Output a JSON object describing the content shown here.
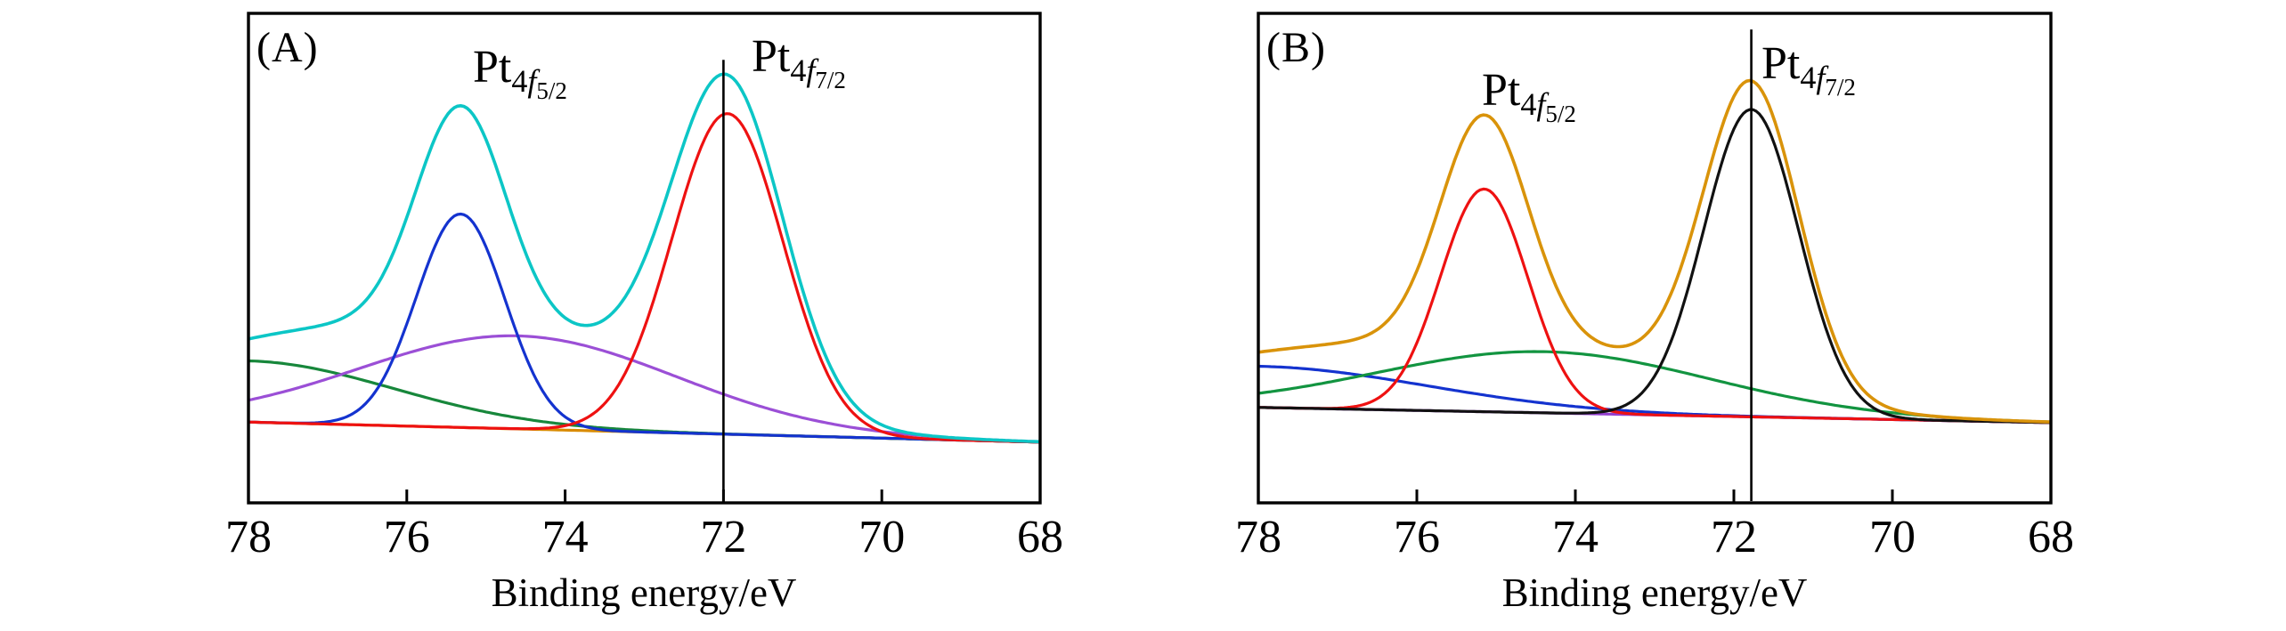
{
  "figure_caption": "XPS Pt 4f spectra, two panels",
  "chart_data": [
    {
      "type": "line",
      "panel": "A",
      "title": "(A)",
      "xlabel": "Binding energy/eV",
      "x_range": [
        78,
        68
      ],
      "x_axis_reversed": true,
      "x_ticks": [
        78,
        76,
        74,
        72,
        70,
        68
      ],
      "y_axis": "intensity, arbitrary units (no scale shown)",
      "grid": false,
      "legend": false,
      "vline": {
        "eV": 72.0,
        "top_frac": 0.905
      },
      "baseline": {
        "name": "baseline",
        "color": "#d98b00",
        "level_start": 0.165,
        "level_end": 0.124
      },
      "components": [
        {
          "name": "background-curve",
          "color": "#17873b",
          "shape": "edge_decay",
          "amplitude": 0.125,
          "decay_scale_eV": 2.6
        },
        {
          "name": "broad-oxide-component",
          "color": "#9b4fd6",
          "shape": "gaussian",
          "center_eV": 74.6,
          "sigma_eV": 2.0,
          "amplitude": 0.19
        },
        {
          "name": "pt4f5-2-component",
          "color": "#1433cf",
          "shape": "gaussian",
          "center_eV": 75.32,
          "sigma_eV": 0.56,
          "amplitude": 0.436
        },
        {
          "name": "pt4f7-2-component",
          "color": "#ee1111",
          "shape": "gaussian",
          "center_eV": 71.95,
          "sigma_eV": 0.7,
          "amplitude": 0.655
        }
      ],
      "envelope": {
        "name": "fit-envelope",
        "color": "#0cc6c6"
      },
      "annotations": [
        {
          "element": "Pt",
          "n": "4",
          "l": "f",
          "j": "5/2",
          "peak_eV": 75.3
        },
        {
          "element": "Pt",
          "n": "4",
          "l": "f",
          "j": "7/2",
          "peak_eV": 72.0
        }
      ]
    },
    {
      "type": "line",
      "panel": "B",
      "title": "(B)",
      "xlabel": "Binding energy/eV",
      "x_range": [
        78,
        68
      ],
      "x_axis_reversed": true,
      "x_ticks": [
        78,
        76,
        74,
        72,
        70,
        68
      ],
      "y_axis": "intensity, arbitrary units (no scale shown)",
      "grid": false,
      "legend": false,
      "vline": {
        "eV": 71.78,
        "top_frac": 0.967
      },
      "baseline": {
        "name": "baseline",
        "color": "#9440cf",
        "level_start": 0.195,
        "level_end": 0.164
      },
      "components": [
        {
          "name": "background-curve",
          "color": "#1433cf",
          "shape": "edge_decay",
          "amplitude": 0.084,
          "decay_scale_eV": 3.0
        },
        {
          "name": "broad-oxide-component",
          "color": "#129440",
          "shape": "gaussian",
          "center_eV": 74.4,
          "sigma_eV": 2.1,
          "amplitude": 0.125
        },
        {
          "name": "pt4f5-2-component",
          "color": "#ee1111",
          "shape": "gaussian",
          "center_eV": 75.15,
          "sigma_eV": 0.55,
          "amplitude": 0.455
        },
        {
          "name": "pt4f7-2-component",
          "color": "#111111",
          "shape": "gaussian",
          "center_eV": 71.78,
          "sigma_eV": 0.6,
          "amplitude": 0.628
        }
      ],
      "envelope": {
        "name": "fit-envelope",
        "color": "#d9930a"
      },
      "annotations": [
        {
          "element": "Pt",
          "n": "4",
          "l": "f",
          "j": "5/2",
          "peak_eV": 75.15
        },
        {
          "element": "Pt",
          "n": "4",
          "l": "f",
          "j": "7/2",
          "peak_eV": 71.8
        }
      ]
    }
  ]
}
